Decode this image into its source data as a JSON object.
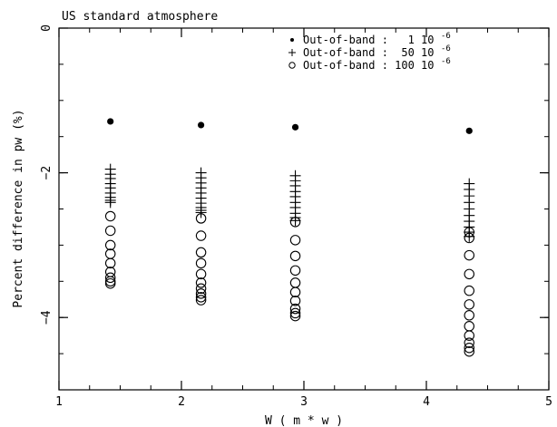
{
  "chart_data": {
    "type": "scatter",
    "title": "",
    "annotation": "US standard atmosphere",
    "xlabel": "W ( m * w )",
    "ylabel": "Percent difference in pw (%)",
    "xlim": [
      1,
      5
    ],
    "ylim": [
      -5,
      0
    ],
    "x_ticks": [
      1,
      2,
      3,
      4,
      5
    ],
    "y_ticks": [
      0,
      -2,
      -4
    ],
    "x_tick_labels": [
      "1",
      "2",
      "3",
      "4",
      "5"
    ],
    "y_tick_labels": [
      "0",
      "−2",
      "−4"
    ],
    "grid": false,
    "legend_position": "top-right",
    "series": [
      {
        "name": "Out-of-band :   1 10",
        "exponent": "-6",
        "marker": "dot",
        "x": [
          1.42,
          2.16,
          2.93,
          4.35
        ],
        "y": [
          -1.29,
          -1.34,
          -1.37,
          -1.42
        ]
      },
      {
        "name": "Out-of-band :  50 10",
        "exponent": "-6",
        "marker": "plus",
        "points": [
          {
            "x": 1.42,
            "y": [
              -1.95,
              -2.02,
              -2.08,
              -2.15,
              -2.21,
              -2.28,
              -2.34,
              -2.38,
              -2.41
            ]
          },
          {
            "x": 2.16,
            "y": [
              -2.0,
              -2.07,
              -2.14,
              -2.21,
              -2.28,
              -2.35,
              -2.42,
              -2.48,
              -2.52,
              -2.55
            ]
          },
          {
            "x": 2.93,
            "y": [
              -2.04,
              -2.11,
              -2.18,
              -2.26,
              -2.33,
              -2.41,
              -2.48,
              -2.56,
              -2.62,
              -2.66
            ]
          },
          {
            "x": 4.35,
            "y": [
              -2.15,
              -2.23,
              -2.32,
              -2.41,
              -2.5,
              -2.59,
              -2.67,
              -2.75,
              -2.82,
              -2.88
            ]
          }
        ]
      },
      {
        "name": "Out-of-band : 100 10",
        "exponent": "-6",
        "marker": "circle",
        "points": [
          {
            "x": 1.42,
            "y": [
              -2.6,
              -2.8,
              -3.0,
              -3.12,
              -3.25,
              -3.37,
              -3.45,
              -3.5,
              -3.53
            ]
          },
          {
            "x": 2.16,
            "y": [
              -2.63,
              -2.87,
              -3.1,
              -3.25,
              -3.4,
              -3.52,
              -3.6,
              -3.67,
              -3.72,
              -3.76
            ]
          },
          {
            "x": 2.93,
            "y": [
              -2.68,
              -2.93,
              -3.15,
              -3.35,
              -3.52,
              -3.65,
              -3.77,
              -3.88,
              -3.94,
              -3.98
            ]
          },
          {
            "x": 4.35,
            "y": [
              -2.82,
              -2.9,
              -3.14,
              -3.4,
              -3.63,
              -3.82,
              -3.97,
              -4.12,
              -4.25,
              -4.35,
              -4.42,
              -4.47
            ]
          }
        ]
      }
    ]
  }
}
